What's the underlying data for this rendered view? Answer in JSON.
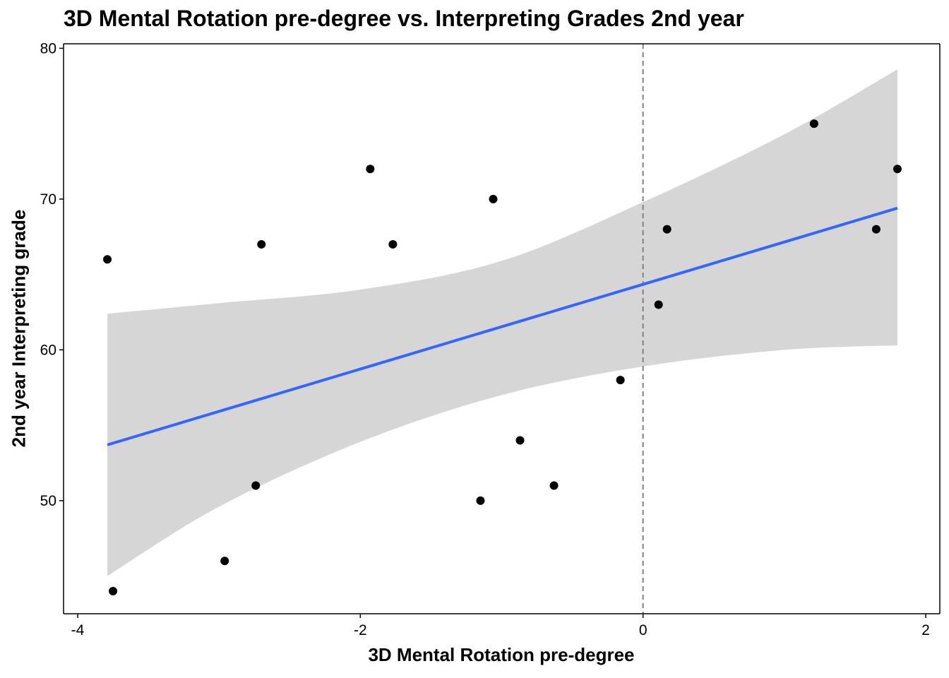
{
  "chart_data": {
    "type": "scatter",
    "title": "3D Mental Rotation pre-degree vs. Interpreting Grades 2nd year",
    "xlabel": "3D Mental Rotation pre-degree",
    "ylabel": "2nd year Interpreting grade",
    "xlim": [
      -4.1,
      2.1
    ],
    "ylim": [
      42.5,
      80.3
    ],
    "xticks": [
      -4,
      -2,
      0,
      2
    ],
    "xtick_labels": [
      "-4",
      "-2",
      "0",
      "2"
    ],
    "yticks": [
      50,
      60,
      70,
      80
    ],
    "ytick_labels": [
      "50",
      "60",
      "70",
      "80"
    ],
    "grid": false,
    "legend": "none",
    "points": [
      {
        "x": -3.79,
        "y": 66
      },
      {
        "x": -3.75,
        "y": 44
      },
      {
        "x": -2.96,
        "y": 46
      },
      {
        "x": -2.74,
        "y": 51
      },
      {
        "x": -2.7,
        "y": 67
      },
      {
        "x": -1.93,
        "y": 72
      },
      {
        "x": -1.77,
        "y": 67
      },
      {
        "x": -1.15,
        "y": 50
      },
      {
        "x": -1.06,
        "y": 70
      },
      {
        "x": -0.87,
        "y": 54
      },
      {
        "x": -0.63,
        "y": 51
      },
      {
        "x": -0.16,
        "y": 58
      },
      {
        "x": 0.11,
        "y": 63
      },
      {
        "x": 0.17,
        "y": 68
      },
      {
        "x": 1.21,
        "y": 75
      },
      {
        "x": 1.65,
        "y": 68
      },
      {
        "x": 1.8,
        "y": 72
      }
    ],
    "fit_line": {
      "x": [
        -3.79,
        1.8
      ],
      "y": [
        53.7,
        69.4
      ]
    },
    "confidence_band": {
      "x": [
        -3.79,
        -3.0,
        -2.0,
        -1.0,
        0.0,
        1.0,
        1.8
      ],
      "lower": [
        45.0,
        49.6,
        53.9,
        57.0,
        58.9,
        60.0,
        60.3
      ],
      "upper": [
        62.4,
        63.1,
        64.0,
        65.9,
        69.8,
        74.3,
        78.6
      ]
    },
    "reference_line": {
      "x": 0,
      "style": "dashed"
    },
    "colors": {
      "points": "#000000",
      "fit_line": "#3366FF",
      "band": "#D6D6D6",
      "reference_line": "#808080"
    }
  }
}
